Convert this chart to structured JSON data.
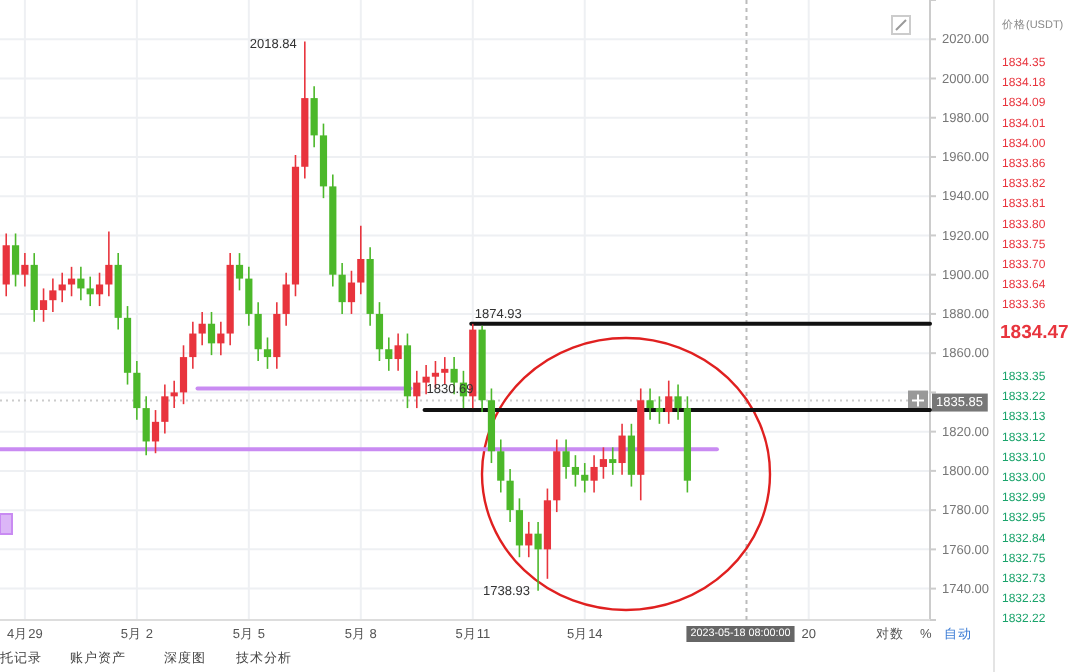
{
  "chart_data": {
    "type": "candlestick",
    "x": [
      "2023-04-28T12:00",
      "2023-04-28T18:00",
      "2023-04-29T00:00",
      "2023-04-29T06:00",
      "2023-04-29T12:00",
      "2023-04-29T18:00",
      "2023-04-30T00:00",
      "2023-04-30T06:00",
      "2023-04-30T12:00",
      "2023-04-30T18:00",
      "2023-05-01T00:00",
      "2023-05-01T06:00",
      "2023-05-01T12:00",
      "2023-05-01T18:00",
      "2023-05-02T00:00",
      "2023-05-02T06:00",
      "2023-05-02T12:00",
      "2023-05-02T18:00",
      "2023-05-03T00:00",
      "2023-05-03T06:00",
      "2023-05-03T12:00",
      "2023-05-03T18:00",
      "2023-05-04T00:00",
      "2023-05-04T06:00",
      "2023-05-04T12:00",
      "2023-05-04T18:00",
      "2023-05-05T00:00",
      "2023-05-05T06:00",
      "2023-05-05T12:00",
      "2023-05-05T18:00",
      "2023-05-06T00:00",
      "2023-05-06T06:00",
      "2023-05-06T12:00",
      "2023-05-06T18:00",
      "2023-05-07T00:00",
      "2023-05-07T06:00",
      "2023-05-07T12:00",
      "2023-05-07T18:00",
      "2023-05-08T00:00",
      "2023-05-08T06:00",
      "2023-05-08T12:00",
      "2023-05-08T18:00",
      "2023-05-09T00:00",
      "2023-05-09T06:00",
      "2023-05-09T12:00",
      "2023-05-09T18:00",
      "2023-05-10T00:00",
      "2023-05-10T06:00",
      "2023-05-10T12:00",
      "2023-05-10T18:00",
      "2023-05-11T00:00",
      "2023-05-11T06:00",
      "2023-05-11T12:00",
      "2023-05-11T18:00",
      "2023-05-12T00:00",
      "2023-05-12T06:00",
      "2023-05-12T12:00",
      "2023-05-12T18:00",
      "2023-05-13T00:00",
      "2023-05-13T06:00",
      "2023-05-13T12:00",
      "2023-05-13T18:00",
      "2023-05-14T00:00",
      "2023-05-14T06:00",
      "2023-05-14T12:00",
      "2023-05-14T18:00",
      "2023-05-15T00:00",
      "2023-05-15T06:00",
      "2023-05-15T12:00",
      "2023-05-15T18:00",
      "2023-05-16T00:00",
      "2023-05-16T06:00",
      "2023-05-16T12:00",
      "2023-05-16T18:00"
    ],
    "ohlc": [
      [
        1895,
        1921,
        1889,
        1915
      ],
      [
        1915,
        1921,
        1894,
        1900
      ],
      [
        1900,
        1911,
        1894,
        1905
      ],
      [
        1905,
        1911,
        1876,
        1882
      ],
      [
        1882,
        1893,
        1876,
        1887
      ],
      [
        1887,
        1898,
        1881,
        1892
      ],
      [
        1892,
        1901,
        1886,
        1895
      ],
      [
        1895,
        1904,
        1889,
        1898
      ],
      [
        1898,
        1904,
        1887,
        1893
      ],
      [
        1893,
        1899,
        1884,
        1890
      ],
      [
        1890,
        1901,
        1884,
        1895
      ],
      [
        1895,
        1922,
        1889,
        1905
      ],
      [
        1905,
        1911,
        1872,
        1878
      ],
      [
        1878,
        1884,
        1844,
        1850
      ],
      [
        1850,
        1856,
        1826,
        1832
      ],
      [
        1832,
        1838,
        1808,
        1815
      ],
      [
        1815,
        1831,
        1809,
        1825
      ],
      [
        1825,
        1844,
        1819,
        1838
      ],
      [
        1838,
        1846,
        1832,
        1840
      ],
      [
        1840,
        1864,
        1834,
        1858
      ],
      [
        1858,
        1876,
        1852,
        1870
      ],
      [
        1870,
        1881,
        1864,
        1875
      ],
      [
        1875,
        1881,
        1859,
        1865
      ],
      [
        1865,
        1876,
        1859,
        1870
      ],
      [
        1870,
        1911,
        1864,
        1905
      ],
      [
        1905,
        1911,
        1892,
        1898
      ],
      [
        1898,
        1904,
        1874,
        1880
      ],
      [
        1880,
        1886,
        1856,
        1862
      ],
      [
        1862,
        1868,
        1852,
        1858
      ],
      [
        1858,
        1886,
        1852,
        1880
      ],
      [
        1880,
        1901,
        1874,
        1895
      ],
      [
        1895,
        1961,
        1889,
        1955
      ],
      [
        1955,
        2018.84,
        1949,
        1990
      ],
      [
        1990,
        1996,
        1965,
        1971
      ],
      [
        1971,
        1977,
        1939,
        1945
      ],
      [
        1945,
        1951,
        1894,
        1900
      ],
      [
        1900,
        1906,
        1880,
        1886
      ],
      [
        1886,
        1902,
        1880,
        1896
      ],
      [
        1896,
        1925,
        1890,
        1908
      ],
      [
        1908,
        1914,
        1874,
        1880
      ],
      [
        1880,
        1886,
        1856,
        1862
      ],
      [
        1862,
        1868,
        1851,
        1857
      ],
      [
        1857,
        1870,
        1851,
        1864
      ],
      [
        1864,
        1870,
        1832,
        1838
      ],
      [
        1838,
        1851,
        1832,
        1845
      ],
      [
        1845,
        1854,
        1839,
        1848
      ],
      [
        1848,
        1856,
        1842,
        1850
      ],
      [
        1850,
        1858,
        1844,
        1852
      ],
      [
        1852,
        1858,
        1839,
        1845
      ],
      [
        1845,
        1851,
        1832,
        1838
      ],
      [
        1838,
        1874.93,
        1832,
        1872
      ],
      [
        1872,
        1874,
        1830,
        1836
      ],
      [
        1836,
        1842,
        1804,
        1810
      ],
      [
        1810,
        1816,
        1789,
        1795
      ],
      [
        1795,
        1801,
        1774,
        1780
      ],
      [
        1780,
        1786,
        1756,
        1762
      ],
      [
        1762,
        1774,
        1756,
        1768
      ],
      [
        1768,
        1774,
        1738.93,
        1760
      ],
      [
        1760,
        1791,
        1745,
        1785
      ],
      [
        1785,
        1816,
        1779,
        1810
      ],
      [
        1810,
        1816,
        1796,
        1802
      ],
      [
        1802,
        1808,
        1792,
        1798
      ],
      [
        1798,
        1804,
        1789,
        1795
      ],
      [
        1795,
        1808,
        1789,
        1802
      ],
      [
        1802,
        1812,
        1796,
        1806
      ],
      [
        1806,
        1812,
        1798,
        1804
      ],
      [
        1804,
        1824,
        1798,
        1818
      ],
      [
        1818,
        1824,
        1792,
        1798
      ],
      [
        1798,
        1842,
        1785,
        1836
      ],
      [
        1836,
        1842,
        1826,
        1832
      ],
      [
        1832,
        1838,
        1824,
        1830
      ],
      [
        1830,
        1846,
        1824,
        1838
      ],
      [
        1838,
        1844,
        1826,
        1832
      ],
      [
        1832,
        1838,
        1789,
        1795
      ]
    ],
    "colors": [
      "#e8343d",
      "#4cb82a",
      "#e8343d",
      "#4cb82a",
      "#e8343d",
      "#e8343d",
      "#e8343d",
      "#e8343d",
      "#4cb82a",
      "#4cb82a",
      "#e8343d",
      "#e8343d",
      "#4cb82a",
      "#4cb82a",
      "#4cb82a",
      "#4cb82a",
      "#e8343d",
      "#e8343d",
      "#e8343d",
      "#e8343d",
      "#e8343d",
      "#e8343d",
      "#4cb82a",
      "#e8343d",
      "#e8343d",
      "#4cb82a",
      "#4cb82a",
      "#4cb82a",
      "#4cb82a",
      "#e8343d",
      "#e8343d",
      "#e8343d",
      "#e8343d",
      "#4cb82a",
      "#4cb82a",
      "#4cb82a",
      "#4cb82a",
      "#e8343d",
      "#e8343d",
      "#4cb82a",
      "#4cb82a",
      "#4cb82a",
      "#e8343d",
      "#4cb82a",
      "#e8343d",
      "#e8343d",
      "#e8343d",
      "#e8343d",
      "#4cb82a",
      "#4cb82a",
      "#e8343d",
      "#4cb82a",
      "#4cb82a",
      "#4cb82a",
      "#4cb82a",
      "#4cb82a",
      "#e8343d",
      "#4cb82a",
      "#e8343d",
      "#e8343d",
      "#4cb82a",
      "#4cb82a",
      "#4cb82a",
      "#e8343d",
      "#e8343d",
      "#4cb82a",
      "#e8343d",
      "#4cb82a",
      "#e8343d",
      "#4cb82a",
      "#4cb82a",
      "#e8343d",
      "#4cb82a",
      "#4cb82a"
    ],
    "series": [
      {
        "type": "line",
        "x": [
          "2023-04-28T08:00",
          "2023-05-17T13:00"
        ],
        "values": [
          1811,
          1811
        ],
        "color": "#c98bf2"
      },
      {
        "type": "line",
        "x": [
          "2023-05-03T15:00",
          "2023-05-09T08:00"
        ],
        "values": [
          1842,
          1842
        ],
        "color": "#c98bf2"
      },
      {
        "type": "line",
        "x": [
          "2023-05-09T17:00",
          "2023-05-23T06:00"
        ],
        "values": [
          1831,
          1831
        ],
        "color": "#111111"
      },
      {
        "type": "line",
        "x": [
          "2023-05-10T23:00",
          "2023-05-23T06:00"
        ],
        "values": [
          1875,
          1875
        ],
        "color": "#111111"
      }
    ],
    "xlim": [
      "2023-04-28T08:00",
      "2023-05-23T06:00"
    ],
    "xticks": [
      {
        "value": "2023-04-29",
        "label": "4月29"
      },
      {
        "value": "2023-05-02",
        "label": "5月 2"
      },
      {
        "value": "2023-05-05",
        "label": "5月 5"
      },
      {
        "value": "2023-05-08",
        "label": "5月 8"
      },
      {
        "value": "2023-05-11",
        "label": "5月11"
      },
      {
        "value": "2023-05-14",
        "label": "5月14"
      },
      {
        "value": "2023-05-20",
        "label": "20"
      }
    ],
    "ylim": [
      1724,
      2040
    ],
    "yticks": [
      {
        "value": 1740,
        "label": "1740.00"
      },
      {
        "value": 1760,
        "label": "1760.00"
      },
      {
        "value": 1780,
        "label": "1780.00"
      },
      {
        "value": 1800,
        "label": "1800.00"
      },
      {
        "value": 1820,
        "label": "1820.00"
      },
      {
        "value": 1840,
        "label": null
      },
      {
        "value": 1860,
        "label": "1860.00"
      },
      {
        "value": 1880,
        "label": "1880.00"
      },
      {
        "value": 1900,
        "label": "1900.00"
      },
      {
        "value": 1920,
        "label": "1920.00"
      },
      {
        "value": 1940,
        "label": "1940.00"
      },
      {
        "value": 1960,
        "label": "1960.00"
      },
      {
        "value": 1980,
        "label": "1980.00"
      },
      {
        "value": 2000,
        "label": "2000.00"
      },
      {
        "value": 2020,
        "label": "2020.00"
      }
    ],
    "grid": true,
    "ref_lines": [
      {
        "axis": "x",
        "value": "2023-05-18T08:00",
        "label": "2023-05-18 08:00:00",
        "line_style": "dashed",
        "color": "#bbbbbb"
      },
      {
        "axis": "y",
        "value": 1835.85,
        "label": "1835.85",
        "line_style": "dotted",
        "color": "#cccccc"
      }
    ],
    "annotations": [
      {
        "text": "2018.84",
        "x": "2023-05-06T12:00",
        "y": 2018.84
      },
      {
        "text": "1738.93",
        "x": "2023-05-12T18:00",
        "y": 1738.93
      },
      {
        "text": "1874.93",
        "x": "2023-05-11T00:00",
        "y": 1874.93
      },
      {
        "text": "1830.69",
        "x": "2023-05-09T17:00",
        "y": 1830.69
      },
      "托记录",
      "账户资产",
      "深度图",
      "技术分析",
      "对数",
      "%",
      "自动",
      "价格(USDT)",
      "1834.35",
      "1834.18",
      "1834.09",
      "1834.01",
      "1834.00",
      "1833.86",
      "1833.82",
      "1833.81",
      "1833.80",
      "1833.75",
      "1833.70",
      "1833.64",
      "1833.36",
      "1834.47",
      "1833.35",
      "1833.22",
      "1833.13",
      "1833.12",
      "1833.10",
      "1833.00",
      "1832.99",
      "1832.95",
      "1832.84",
      "1832.75",
      "1832.73",
      "1832.23",
      "1832.22"
    ]
  }
}
